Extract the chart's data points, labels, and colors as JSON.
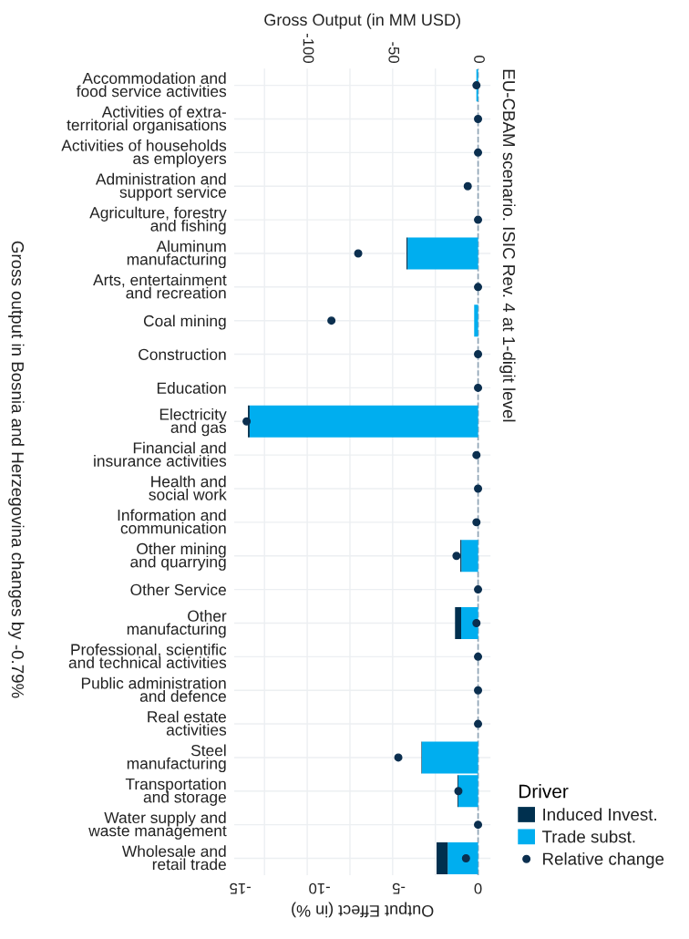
{
  "chart_data": {
    "type": "bar",
    "orientation": "horizontal",
    "stacked": true,
    "title": "EU-CBAM scenario. ISIC Rev. 4 at 1-digit level",
    "annotations": [
      "Gross output in Bosnia and Herzegovina changes by -0.79%"
    ],
    "xlabel": "Output Effect (in %)",
    "x2label": "Gross Output (in MM USD)",
    "legend_title": "Driver",
    "categories": [
      "Accommodation and\nfood service activities",
      "Activities of extra-\nterritorial organisations",
      "Activities of households\nas employers",
      "Administration and\nsupport service",
      "Agriculture, forestry\nand fishing",
      "Aluminum\nmanufacturing",
      "Arts, entertainment\nand recreation",
      "Coal mining",
      "Construction",
      "Education",
      "Electricity\nand gas",
      "Financial and\ninsurance activities",
      "Health and\nsocial work",
      "Information and\ncommunication",
      "Other mining\nand quarrying",
      "Other Service",
      "Other\nmanufacturing",
      "Professional, scientific\nand technical activities",
      "Public administration\nand defence",
      "Real estate\nactivities",
      "Steel\nmanufacturing",
      "Transportation\nand storage",
      "Water supply and\nwaste management",
      "Wholesale and\nretail trade"
    ],
    "series": [
      {
        "name": "Trade subst.",
        "axis": "x2",
        "color": "#00aeef",
        "values": [
          -1,
          0,
          0,
          0,
          0,
          -41.3,
          0,
          -2.3,
          0,
          0,
          -133.7,
          0,
          0,
          0,
          -9.8,
          0,
          -9.9,
          0,
          0,
          0,
          -32.9,
          -11.6,
          0,
          -17.8
        ]
      },
      {
        "name": "Induced Invest.",
        "axis": "x2",
        "color": "#00304f",
        "values": [
          0,
          0,
          0,
          0,
          0,
          -0.6,
          0,
          0,
          0,
          0,
          -1.0,
          0,
          0,
          0,
          -0.6,
          0,
          -3.6,
          0,
          0,
          0,
          -0.3,
          -0.5,
          0,
          -6.5
        ]
      },
      {
        "name": "Relative change",
        "type": "scatter",
        "color": "#0b2f4f",
        "values": [
          -0.1,
          0,
          0,
          -0.65,
          0,
          -7.56,
          0,
          -9.25,
          0,
          0,
          -14.6,
          -0.1,
          0,
          -0.1,
          -1.36,
          0,
          -0.1,
          0,
          0,
          0,
          -5.03,
          -1.24,
          0,
          -0.76
        ]
      }
    ],
    "xlim": [
      -15.38,
      0.79
    ],
    "xticks": [
      -15,
      -10,
      -5,
      0
    ],
    "x2lim": [
      -142.7,
      7.3
    ],
    "x2ticks": [
      {
        "value": -125,
        "label": null
      },
      -100,
      {
        "value": -75,
        "label": null
      },
      -50,
      {
        "value": -25,
        "label": null
      },
      0
    ],
    "ref_lines": [
      {
        "axis": "x2",
        "value": 0,
        "color": "#8fa3b5",
        "line_style": "dashed"
      }
    ],
    "grid": true,
    "legend": "bottom right",
    "marker": "circle"
  }
}
